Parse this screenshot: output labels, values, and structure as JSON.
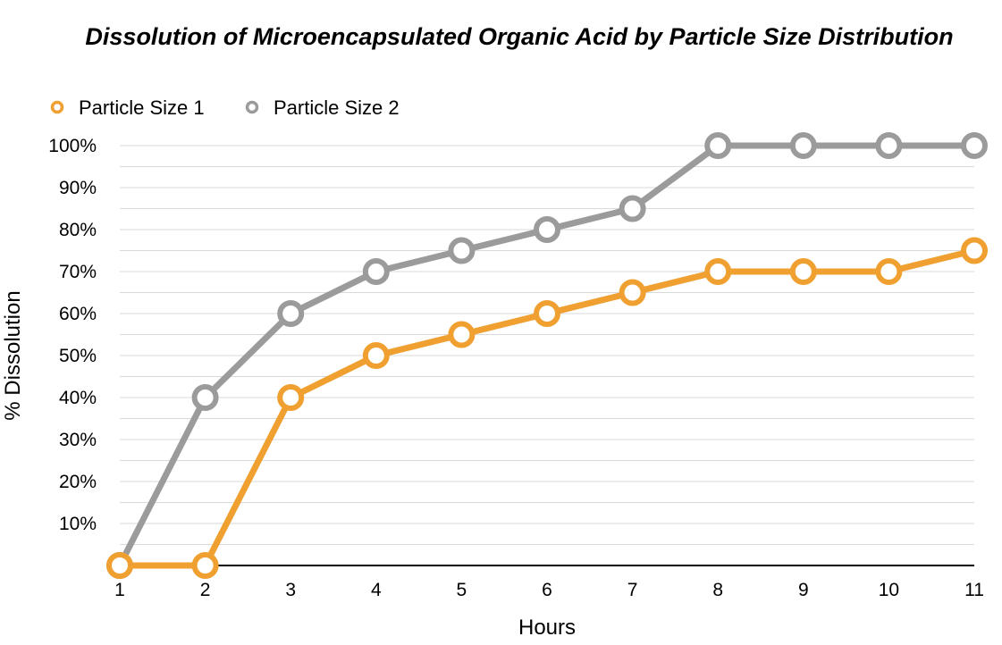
{
  "chart_data": {
    "type": "line",
    "title": "Dissolution of Microencapsulated Organic Acid by Particle Size Distribution",
    "xlabel": "Hours",
    "ylabel": "% Dissolution",
    "x": [
      1,
      2,
      3,
      4,
      5,
      6,
      7,
      8,
      9,
      10,
      11
    ],
    "x_tick_labels": [
      "1",
      "2",
      "3",
      "4",
      "5",
      "6",
      "7",
      "8",
      "9",
      "10",
      "11"
    ],
    "y_ticks": [
      10,
      20,
      30,
      40,
      50,
      60,
      70,
      80,
      90,
      100
    ],
    "y_tick_labels": [
      "10%",
      "20%",
      "30%",
      "40%",
      "50%",
      "60%",
      "70%",
      "80%",
      "90%",
      "100%"
    ],
    "ylim": [
      0,
      100
    ],
    "xlim": [
      1,
      11
    ],
    "grid": true,
    "legend_position": "top-left",
    "series": [
      {
        "name": "Particle Size 1",
        "color": "#f0a030",
        "values": [
          0,
          0,
          40,
          50,
          55,
          60,
          65,
          70,
          70,
          70,
          75
        ]
      },
      {
        "name": "Particle Size 2",
        "color": "#9b9b9b",
        "values": [
          0,
          40,
          60,
          70,
          75,
          80,
          85,
          100,
          100,
          100,
          100
        ]
      }
    ]
  }
}
